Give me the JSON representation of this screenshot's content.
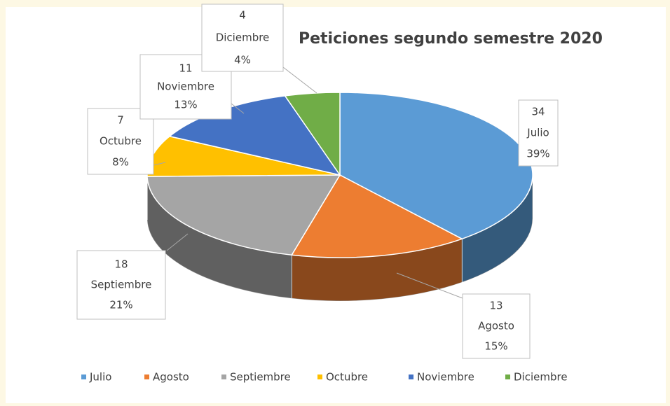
{
  "chart_data": {
    "type": "pie",
    "title": "Peticiones segundo semestre 2020",
    "categories": [
      "Julio",
      "Agosto",
      "Septiembre",
      "Octubre",
      "Noviembre",
      "Diciembre"
    ],
    "values": [
      34,
      13,
      18,
      7,
      11,
      4
    ],
    "percent_labels": [
      "39%",
      "15%",
      "21%",
      "8%",
      "13%",
      "4%"
    ],
    "colors": [
      "#5b9bd5",
      "#ed7d31",
      "#a5a5a5",
      "#ffc000",
      "#4472c4",
      "#70ad47"
    ],
    "legend": "bottom"
  }
}
